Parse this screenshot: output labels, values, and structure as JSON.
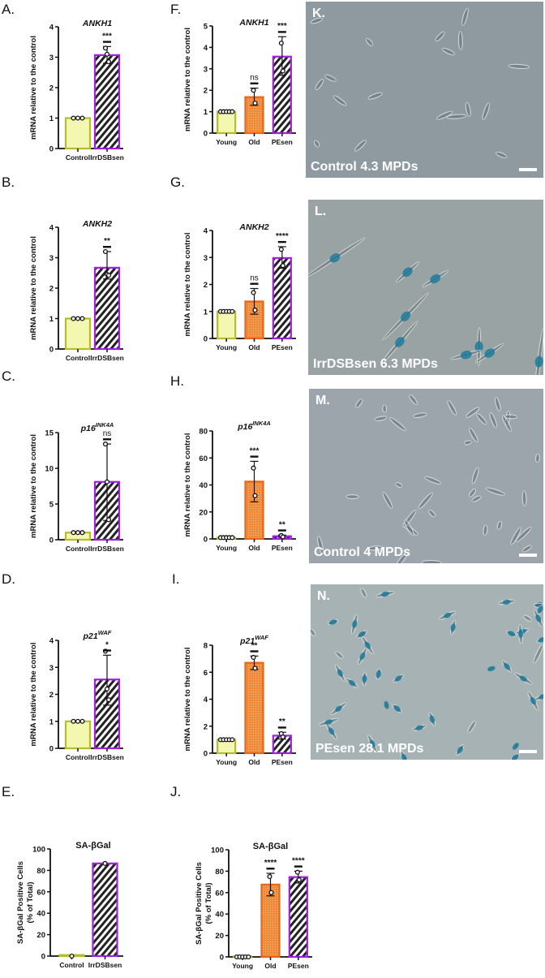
{
  "colors": {
    "control": "#f4f7b0",
    "control_edge": "#b5bd2a",
    "old": "#f08a3a",
    "old_edge": "#e8651a",
    "sen_edge": "#a020e0",
    "hatch": "#222222",
    "photo_bg_K": "#8f9aa0",
    "photo_bg_L": "#9aa3a4",
    "photo_bg_M": "#9ba5ab",
    "photo_bg_N": "#a6b2b4",
    "stain": "#1e7a9a"
  },
  "panels": {
    "A": {
      "letter": "A."
    },
    "B": {
      "letter": "B."
    },
    "C": {
      "letter": "C."
    },
    "D": {
      "letter": "D."
    },
    "E": {
      "letter": "E."
    },
    "F": {
      "letter": "F."
    },
    "G": {
      "letter": "G."
    },
    "H": {
      "letter": "H."
    },
    "I": {
      "letter": "I."
    },
    "J": {
      "letter": "J."
    }
  },
  "photos": {
    "K": {
      "letter": "K.",
      "caption": "Control 4.3 MPDs"
    },
    "L": {
      "letter": "L.",
      "caption": "IrrDSBsen 6.3 MPDs"
    },
    "M": {
      "letter": "M.",
      "caption": "Control  4 MPDs"
    },
    "N": {
      "letter": "N.",
      "caption": "PEsen  28.1 MPDs"
    }
  },
  "chart_data": [
    {
      "id": "A",
      "type": "bar",
      "title": "ANKH1",
      "ylabel": "mRNA relative to the  control",
      "ylim": [
        0,
        4
      ],
      "yticks": [
        0,
        1,
        2,
        3,
        4
      ],
      "categories": [
        "Control",
        "IrrDSBsen"
      ],
      "values": [
        1.0,
        3.07
      ],
      "error_hi": [
        1.0,
        3.35
      ],
      "error_lo": [
        1.0,
        2.8
      ],
      "points": [
        [
          1.0,
          1.0,
          1.0
        ],
        [
          3.3,
          3.1,
          2.85
        ]
      ],
      "significance": [
        "",
        "***"
      ]
    },
    {
      "id": "B",
      "type": "bar",
      "title": "ANKH2",
      "ylabel": "mRNA relative to the  control",
      "ylim": [
        0,
        4
      ],
      "yticks": [
        0,
        1,
        2,
        3,
        4
      ],
      "categories": [
        "Control",
        "IrrDSBsen"
      ],
      "values": [
        1.0,
        2.67
      ],
      "error_hi": [
        1.0,
        3.2
      ],
      "error_lo": [
        1.0,
        2.3
      ],
      "points": [
        [
          1.0,
          1.0,
          1.0
        ],
        [
          3.2,
          2.45,
          2.42
        ]
      ],
      "significance": [
        "",
        "**"
      ]
    },
    {
      "id": "C",
      "type": "bar",
      "title": "p16",
      "title_sup": "INK4A",
      "ylabel": "mRNA relative to the  control",
      "ylim": [
        0,
        15
      ],
      "yticks": [
        0,
        5,
        10,
        15
      ],
      "categories": [
        "Control",
        "IrrDSBsen"
      ],
      "values": [
        1.0,
        8.1
      ],
      "error_hi": [
        1.0,
        13.4
      ],
      "error_lo": [
        1.0,
        2.7
      ],
      "points": [
        [
          1.0,
          1.0,
          1.0
        ],
        [
          13.4,
          8.1,
          2.8
        ]
      ],
      "significance": [
        "",
        "ns"
      ]
    },
    {
      "id": "D",
      "type": "bar",
      "title": "p21",
      "title_sup": "WAF",
      "ylabel": "mRNA relative to the  control",
      "ylim": [
        0,
        4
      ],
      "yticks": [
        0,
        1,
        2,
        3,
        4
      ],
      "categories": [
        "Control",
        "IrrDSBsen"
      ],
      "values": [
        1.0,
        2.55
      ],
      "error_hi": [
        1.0,
        3.45
      ],
      "error_lo": [
        1.0,
        1.6
      ],
      "points": [
        [
          1.0,
          1.0,
          1.0
        ],
        [
          3.6,
          2.2,
          1.8
        ]
      ],
      "significance": [
        "",
        "*"
      ]
    },
    {
      "id": "E",
      "type": "bar",
      "title": "SA-βGal",
      "ylabel": "SA-βGal Positive Cells (% of Total)",
      "ylim": [
        0,
        100
      ],
      "yticks": [
        0,
        20,
        40,
        60,
        80,
        100
      ],
      "categories": [
        "Control",
        "IrrDSBsen"
      ],
      "values": [
        1.0,
        86.5
      ],
      "error_hi": [
        1.0,
        86.5
      ],
      "error_lo": [
        1.0,
        86.5
      ],
      "points": [
        [
          0.0
        ],
        [
          86.5
        ]
      ],
      "significance": [
        "",
        ""
      ]
    },
    {
      "id": "F",
      "type": "bar",
      "title": "ANKH1",
      "ylabel": "mRNA relative to the  control",
      "ylim": [
        0,
        5
      ],
      "yticks": [
        0,
        1,
        2,
        3,
        4,
        5
      ],
      "categories": [
        "Young",
        "Old",
        "PEsen"
      ],
      "values": [
        1.0,
        1.68,
        3.57
      ],
      "error_hi": [
        1.0,
        2.1,
        4.5
      ],
      "error_lo": [
        1.0,
        1.3,
        2.7
      ],
      "points": [
        [
          1.0,
          1.0,
          1.0,
          1.0,
          1.0
        ],
        [
          2.0,
          1.4
        ],
        [
          4.2,
          2.9
        ]
      ],
      "significance": [
        "",
        "ns",
        "***"
      ]
    },
    {
      "id": "G",
      "type": "bar",
      "title": "ANKH2",
      "ylabel": "mRNA relative to the  control",
      "ylim": [
        0,
        4
      ],
      "yticks": [
        0,
        1,
        2,
        3,
        4
      ],
      "categories": [
        "Young",
        "Old",
        "PEsen"
      ],
      "values": [
        1.0,
        1.37,
        2.98
      ],
      "error_hi": [
        1.0,
        1.85,
        3.4
      ],
      "error_lo": [
        1.0,
        0.9,
        2.6
      ],
      "points": [
        [
          1.0,
          1.0,
          1.0,
          1.0,
          1.0
        ],
        [
          1.7,
          1.05
        ],
        [
          3.3,
          2.7
        ]
      ],
      "significance": [
        "",
        "ns",
        "****"
      ]
    },
    {
      "id": "H",
      "type": "bar",
      "title": "p16",
      "title_sup": "INK4A",
      "ylabel": "mRNA relative to the  control",
      "ylim": [
        0,
        80
      ],
      "yticks": [
        0,
        20,
        40,
        60,
        80
      ],
      "categories": [
        "Young",
        "Old",
        "PEsen"
      ],
      "values": [
        1.0,
        42.5,
        2.0
      ],
      "error_hi": [
        1.0,
        57.5,
        2.8
      ],
      "error_lo": [
        1.0,
        27.5,
        1.2
      ],
      "points": [
        [
          1.0,
          1.0,
          1.0,
          1.0,
          1.0
        ],
        [
          52.5,
          32.0
        ],
        [
          2.5,
          1.5
        ]
      ],
      "significance": [
        "",
        "***",
        "**"
      ]
    },
    {
      "id": "I",
      "type": "bar",
      "title": "p21",
      "title_sup": "WAF",
      "ylabel": "mRNA relative to the  control",
      "ylim": [
        0,
        8
      ],
      "yticks": [
        0,
        2,
        4,
        6,
        8
      ],
      "categories": [
        "Young",
        "Old",
        "PEsen"
      ],
      "values": [
        1.0,
        6.7,
        1.3
      ],
      "error_hi": [
        1.0,
        7.2,
        1.55
      ],
      "error_lo": [
        1.0,
        6.2,
        1.05
      ],
      "points": [
        [
          1.0,
          1.0,
          1.0,
          1.0,
          1.0
        ],
        [
          7.1,
          6.3
        ],
        [
          1.45,
          1.2
        ]
      ],
      "significance": [
        "",
        "**",
        "**"
      ]
    },
    {
      "id": "J",
      "type": "bar",
      "title": "SA-βGal",
      "ylabel": "SA-βGal Positive Cells (% of Total)",
      "ylim": [
        0,
        100
      ],
      "yticks": [
        0,
        20,
        40,
        60,
        80,
        100
      ],
      "categories": [
        "Young",
        "Old",
        "PEsen"
      ],
      "values": [
        0.5,
        67.5,
        74.5
      ],
      "error_hi": [
        0.5,
        78.0,
        80.0
      ],
      "error_lo": [
        0.5,
        57.0,
        69.0
      ],
      "points": [
        [
          0.0,
          0.0,
          0.0,
          0.0,
          0.0
        ],
        [
          75.0,
          60.0
        ],
        [
          79.0,
          72.0
        ]
      ],
      "significance": [
        "",
        "****",
        "****"
      ]
    }
  ]
}
